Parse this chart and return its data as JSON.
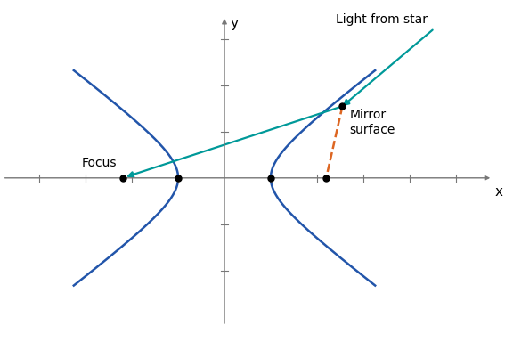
{
  "a": 1.0,
  "b": 0.75,
  "xlim": [
    -4.8,
    5.8
  ],
  "ylim": [
    -3.2,
    3.5
  ],
  "hyperbola_color": "#2255aa",
  "ray_color": "#009999",
  "dashed_color": "#dd6622",
  "focus_left_x": -2.2,
  "focus_left_y": 0,
  "focus_right_x": 2.2,
  "focus_right_y": 0,
  "vertex_right_x": 1.0,
  "vertex_right_y": 0,
  "vertex_left_x": -1.0,
  "vertex_left_y": 0,
  "mirror_x": 2.55,
  "mirror_y": 1.55,
  "light_start_x": 4.5,
  "light_start_y": 3.2,
  "label_focus": "Focus",
  "label_mirror": "Mirror\nsurface",
  "label_light": "Light from star",
  "label_x": "x",
  "label_y": "y",
  "hyperbola_lw": 1.8,
  "ray_lw": 1.6,
  "axis_color": "#777777",
  "dot_size": 5,
  "tick_color": "#777777",
  "t_range": 1.85
}
